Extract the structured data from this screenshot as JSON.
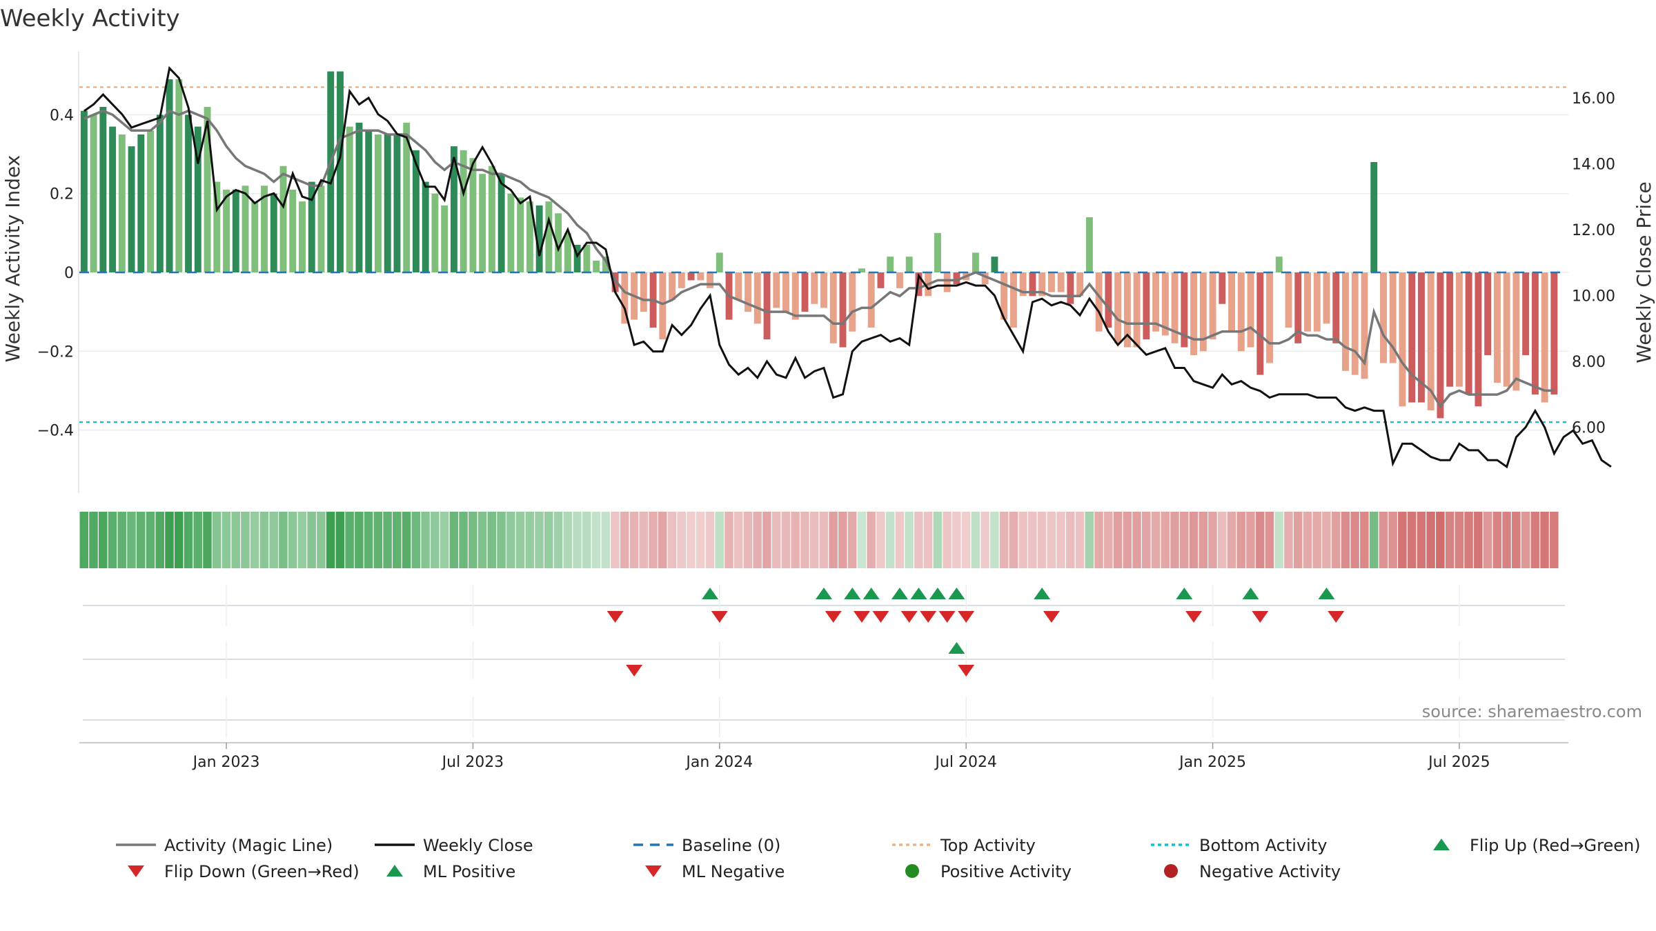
{
  "chart_data": {
    "type": "bar",
    "title": "Weekly Activity",
    "ylabel_left": "Weekly Activity Index",
    "ylabel_right": "Weekly Close Price",
    "ylim_left": [
      -0.56,
      0.56
    ],
    "ylim_right": [
      4.0,
      17.4
    ],
    "left_ticks": [
      {
        "value": 0.4,
        "label": "0.4"
      },
      {
        "value": 0.2,
        "label": "0.2"
      },
      {
        "value": 0.0,
        "label": "0"
      },
      {
        "value": -0.2,
        "label": "−0.2"
      },
      {
        "value": -0.4,
        "label": "−0.4"
      }
    ],
    "right_ticks": [
      {
        "value": 16,
        "label": "16.00"
      },
      {
        "value": 14,
        "label": "14.00"
      },
      {
        "value": 12,
        "label": "12.00"
      },
      {
        "value": 10,
        "label": "10.00"
      },
      {
        "value": 8,
        "label": "8.00"
      },
      {
        "value": 6,
        "label": "6.00"
      }
    ],
    "x_ticks": [
      {
        "week": 15,
        "label": "Jan 2023"
      },
      {
        "week": 41,
        "label": "Jul 2023"
      },
      {
        "week": 67,
        "label": "Jan 2024"
      },
      {
        "week": 93,
        "label": "Jul 2024"
      },
      {
        "week": 119,
        "label": "Jan 2025"
      },
      {
        "week": 145,
        "label": "Jul 2025"
      }
    ],
    "n_weeks": 157,
    "top_activity": 0.47,
    "bottom_activity": -0.38,
    "baseline": 0,
    "activity_index": [
      0.41,
      0.4,
      0.42,
      0.37,
      0.35,
      0.32,
      0.35,
      0.36,
      0.4,
      0.49,
      0.49,
      0.4,
      0.37,
      0.42,
      0.23,
      0.21,
      0.21,
      0.22,
      0.18,
      0.22,
      0.2,
      0.27,
      0.21,
      0.18,
      0.23,
      0.22,
      0.51,
      0.51,
      0.37,
      0.38,
      0.36,
      0.35,
      0.35,
      0.35,
      0.38,
      0.31,
      0.23,
      0.2,
      0.17,
      0.32,
      0.31,
      0.29,
      0.25,
      0.27,
      0.25,
      0.2,
      0.19,
      0.18,
      0.17,
      0.18,
      0.15,
      0.1,
      0.07,
      0.07,
      0.03,
      0.04,
      -0.05,
      -0.13,
      -0.12,
      -0.1,
      -0.14,
      -0.17,
      -0.07,
      -0.04,
      -0.02,
      -0.02,
      -0.04,
      0.05,
      -0.12,
      -0.07,
      -0.1,
      -0.13,
      -0.17,
      -0.09,
      -0.1,
      -0.12,
      -0.1,
      -0.08,
      -0.09,
      -0.18,
      -0.19,
      -0.15,
      0.01,
      -0.14,
      -0.04,
      0.04,
      -0.04,
      0.04,
      -0.06,
      -0.06,
      0.1,
      -0.05,
      -0.03,
      -0.02,
      0.05,
      -0.03,
      0.04,
      -0.12,
      -0.14,
      -0.06,
      -0.06,
      -0.06,
      -0.05,
      -0.05,
      -0.08,
      -0.06,
      0.14,
      -0.15,
      -0.14,
      -0.18,
      -0.19,
      -0.19,
      -0.17,
      -0.15,
      -0.16,
      -0.18,
      -0.19,
      -0.21,
      -0.2,
      -0.17,
      -0.08,
      -0.15,
      -0.2,
      -0.19,
      -0.26,
      -0.23,
      0.04,
      -0.14,
      -0.18,
      -0.15,
      -0.15,
      -0.13,
      -0.18,
      -0.25,
      -0.26,
      -0.27,
      0.28,
      -0.23,
      -0.23,
      -0.34,
      -0.33,
      -0.33,
      -0.35,
      -0.37,
      -0.29,
      -0.29,
      -0.31,
      -0.34,
      -0.21,
      -0.28,
      -0.29,
      -0.3,
      -0.21,
      -0.31,
      -0.33,
      -0.31
    ],
    "magic_line": [
      0.39,
      0.4,
      0.41,
      0.4,
      0.38,
      0.36,
      0.36,
      0.36,
      0.38,
      0.41,
      0.4,
      0.41,
      0.4,
      0.39,
      0.36,
      0.32,
      0.29,
      0.27,
      0.26,
      0.25,
      0.23,
      0.25,
      0.24,
      0.23,
      0.22,
      0.22,
      0.28,
      0.34,
      0.35,
      0.36,
      0.36,
      0.36,
      0.35,
      0.35,
      0.35,
      0.33,
      0.31,
      0.28,
      0.26,
      0.28,
      0.27,
      0.26,
      0.26,
      0.25,
      0.25,
      0.24,
      0.23,
      0.21,
      0.2,
      0.19,
      0.17,
      0.15,
      0.12,
      0.1,
      0.06,
      0.03,
      -0.02,
      -0.05,
      -0.06,
      -0.07,
      -0.07,
      -0.08,
      -0.07,
      -0.05,
      -0.04,
      -0.03,
      -0.03,
      -0.03,
      -0.06,
      -0.07,
      -0.08,
      -0.09,
      -0.1,
      -0.1,
      -0.1,
      -0.11,
      -0.11,
      -0.11,
      -0.11,
      -0.13,
      -0.13,
      -0.1,
      -0.09,
      -0.09,
      -0.07,
      -0.05,
      -0.06,
      -0.04,
      -0.04,
      -0.03,
      -0.02,
      -0.02,
      -0.02,
      -0.01,
      0.0,
      -0.01,
      -0.02,
      -0.03,
      -0.04,
      -0.05,
      -0.05,
      -0.05,
      -0.06,
      -0.06,
      -0.06,
      -0.06,
      -0.03,
      -0.06,
      -0.09,
      -0.12,
      -0.13,
      -0.13,
      -0.13,
      -0.13,
      -0.14,
      -0.15,
      -0.16,
      -0.17,
      -0.17,
      -0.16,
      -0.15,
      -0.15,
      -0.15,
      -0.14,
      -0.16,
      -0.18,
      -0.18,
      -0.17,
      -0.15,
      -0.16,
      -0.16,
      -0.17,
      -0.17,
      -0.19,
      -0.2,
      -0.23,
      -0.1,
      -0.16,
      -0.19,
      -0.23,
      -0.26,
      -0.28,
      -0.3,
      -0.34,
      -0.31,
      -0.3,
      -0.31,
      -0.31,
      -0.31,
      -0.31,
      -0.3,
      -0.27,
      -0.28,
      -0.29,
      -0.3,
      -0.3
    ],
    "weekly_close": [
      15.6,
      15.8,
      16.1,
      15.8,
      15.5,
      15.1,
      15.2,
      15.3,
      15.4,
      16.9,
      16.6,
      15.7,
      14.0,
      15.3,
      12.6,
      13.0,
      13.2,
      13.1,
      12.8,
      13.0,
      13.1,
      12.7,
      13.7,
      13.0,
      12.9,
      13.5,
      13.4,
      14.2,
      16.2,
      15.8,
      16.0,
      15.5,
      15.3,
      14.9,
      14.8,
      14.0,
      13.3,
      13.3,
      12.9,
      14.2,
      13.1,
      14.0,
      14.5,
      14.0,
      13.4,
      13.2,
      12.8,
      13.0,
      11.2,
      12.3,
      11.4,
      12.0,
      11.2,
      11.6,
      11.6,
      11.4,
      10.1,
      9.6,
      8.5,
      8.6,
      8.3,
      8.3,
      9.1,
      8.8,
      9.1,
      9.6,
      10.0,
      8.5,
      7.9,
      7.6,
      7.8,
      7.5,
      8.0,
      7.6,
      7.5,
      8.1,
      7.5,
      7.7,
      7.8,
      6.9,
      7.0,
      8.3,
      8.6,
      8.7,
      8.8,
      8.6,
      8.7,
      8.5,
      10.6,
      10.2,
      10.3,
      10.3,
      10.3,
      10.4,
      10.3,
      10.3,
      10.0,
      9.3,
      8.8,
      8.3,
      9.8,
      9.9,
      9.7,
      9.8,
      9.7,
      9.4,
      9.9,
      9.5,
      8.9,
      8.5,
      8.8,
      8.5,
      8.2,
      8.3,
      8.4,
      7.8,
      7.8,
      7.4,
      7.3,
      7.2,
      7.6,
      7.3,
      7.4,
      7.2,
      7.1,
      6.9,
      7.0,
      7.0,
      7.0,
      7.0,
      6.9,
      6.9,
      6.9,
      6.6,
      6.5,
      6.6,
      6.5,
      6.5,
      4.9,
      5.5,
      5.5,
      5.3,
      5.1,
      5.0,
      5.0,
      5.5,
      5.3,
      5.3,
      5.0,
      5.0,
      4.8,
      5.7,
      6.0,
      6.5,
      6.0,
      5.2,
      5.7,
      5.9,
      5.5,
      5.6,
      5.0,
      4.8
    ],
    "flip_up_weeks": [
      66,
      78,
      81,
      83,
      86,
      88,
      90,
      92,
      101,
      116,
      123,
      131
    ],
    "flip_down_weeks": [
      56,
      67,
      79,
      82,
      84,
      87,
      89,
      91,
      93,
      102,
      117,
      124,
      132
    ],
    "ml_positive_weeks": [
      92
    ],
    "ml_negative_weeks": [
      58,
      93
    ],
    "colors": {
      "pos_dark": "#2e8b57",
      "pos_light": "#7fbf7b",
      "neg_dark": "#cd5c5c",
      "neg_light": "#e8a28a",
      "magic_line": "#777777",
      "weekly_close": "#111111",
      "baseline": "#1f77b4",
      "top_activity": "#f0b27a",
      "bottom_activity": "#17becf",
      "flip_up": "#1a9850",
      "flip_down": "#d62728",
      "positive_dot": "#228b22",
      "negative_dot": "#b22222"
    }
  },
  "source_text": "source: sharemaestro.com",
  "legend": [
    {
      "label": "Activity (Magic Line)",
      "symbol": "line-solid-grey"
    },
    {
      "label": "Weekly Close",
      "symbol": "line-solid-black"
    },
    {
      "label": "Baseline (0)",
      "symbol": "line-dashed-blue"
    },
    {
      "label": "Top Activity",
      "symbol": "line-dotted-orange"
    },
    {
      "label": "Bottom Activity",
      "symbol": "line-dotted-cyan"
    },
    {
      "label": "Flip Up (Red→Green)",
      "symbol": "triangle-up-green"
    },
    {
      "label": "Flip Down (Green→Red)",
      "symbol": "triangle-down-red"
    },
    {
      "label": "ML Positive",
      "symbol": "triangle-up-green"
    },
    {
      "label": "ML Negative",
      "symbol": "triangle-down-red"
    },
    {
      "label": "Positive Activity",
      "symbol": "circle-green"
    },
    {
      "label": "Negative Activity",
      "symbol": "circle-red"
    }
  ]
}
